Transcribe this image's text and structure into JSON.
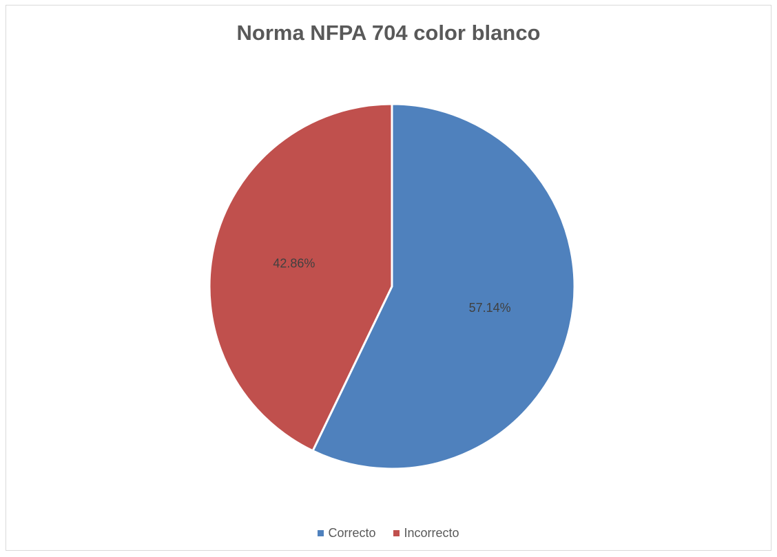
{
  "chart_data": {
    "type": "pie",
    "title": "Norma NFPA 704 color blanco",
    "categories": [
      "Correcto",
      "Incorrecto"
    ],
    "values": [
      57.14,
      42.86
    ],
    "labels": [
      "57.14%",
      "42.86%"
    ],
    "colors": [
      "#4f81bd",
      "#c0504d"
    ],
    "legend": {
      "placement": "bottom",
      "items": [
        "Correcto",
        "Incorrecto"
      ]
    }
  }
}
